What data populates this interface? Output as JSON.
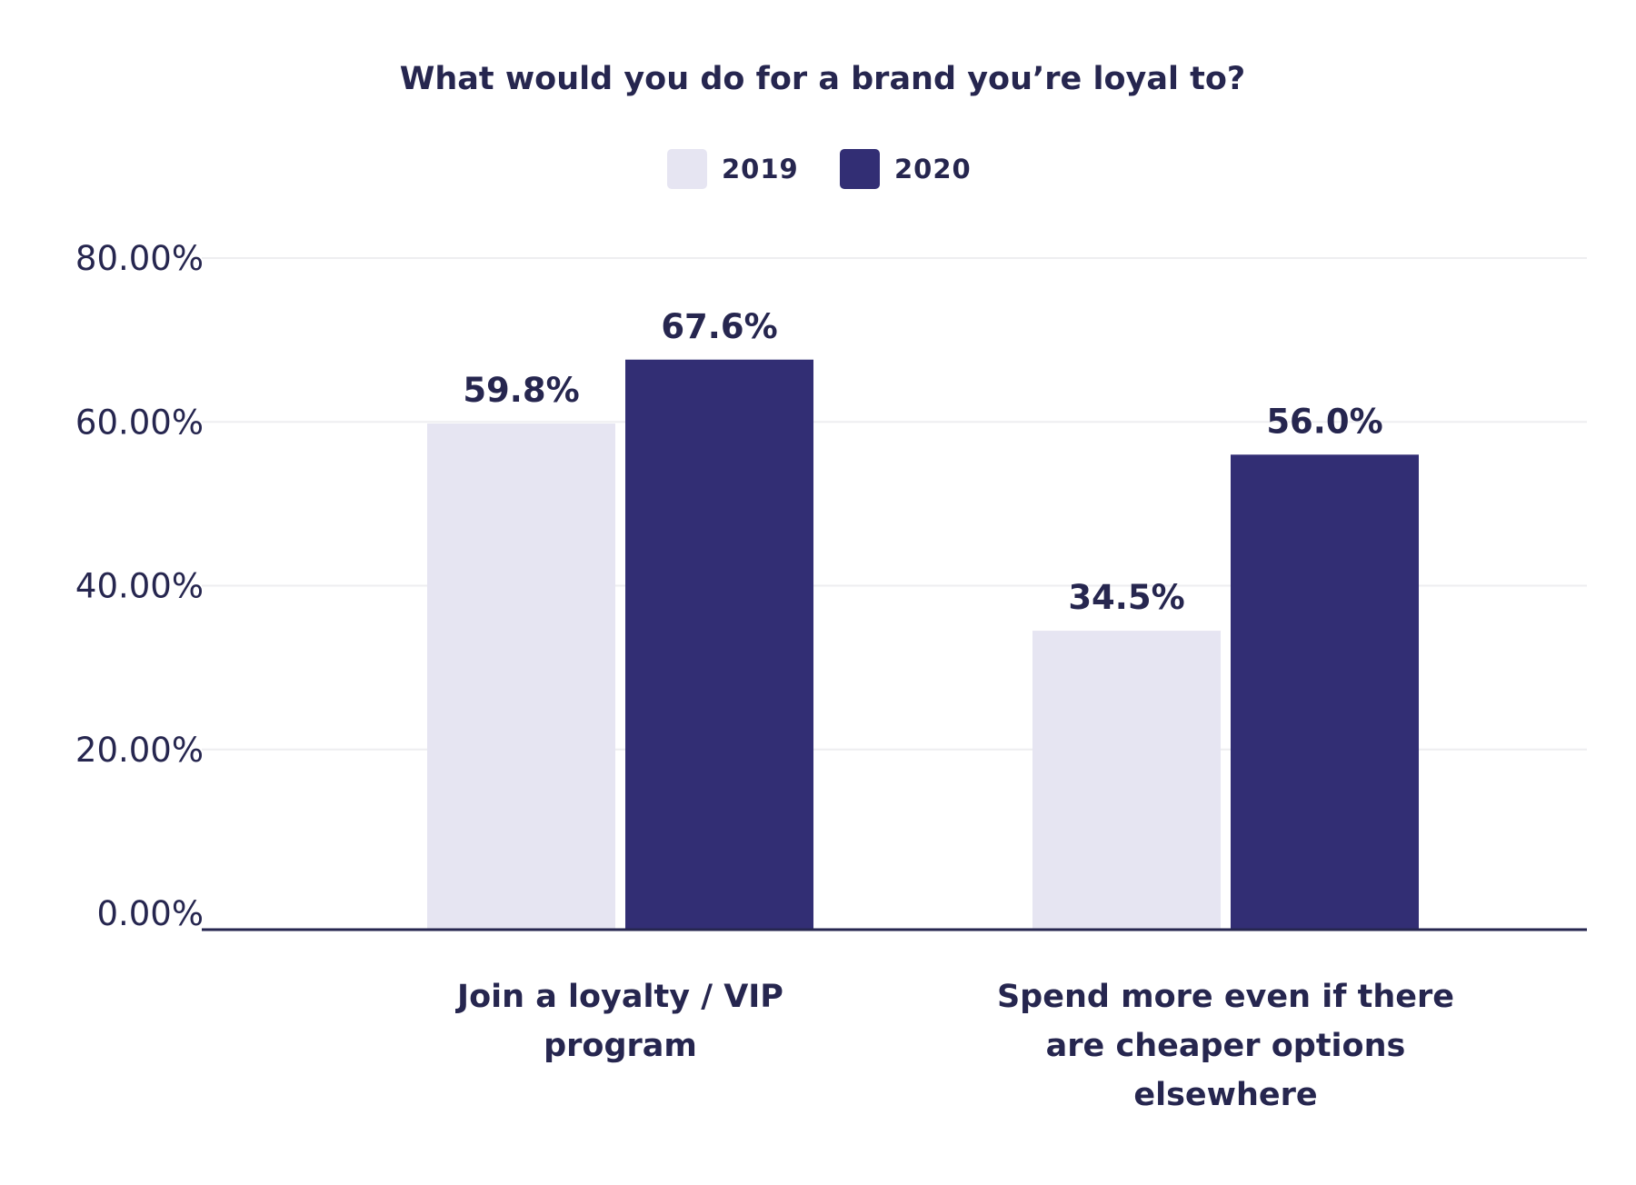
{
  "chart_data": {
    "type": "bar",
    "title": "What would you do for a brand you’re loyal to?",
    "categories": [
      [
        "Join a loyalty / VIP",
        "program"
      ],
      [
        "Spend more even if there",
        "are cheaper options",
        "elsewhere"
      ]
    ],
    "series": [
      {
        "name": "2019",
        "values": [
          59.8,
          34.5
        ],
        "labels": [
          "59.8%",
          "34.5%"
        ],
        "color": "#e6e5f2"
      },
      {
        "name": "2020",
        "values": [
          67.6,
          56.0
        ],
        "labels": [
          "67.6%",
          "56.0%"
        ],
        "color": "#322e74"
      }
    ],
    "yticks": [
      0,
      20,
      40,
      60,
      80
    ],
    "ytick_labels": [
      "0.00%",
      "20.00%",
      "40.00%",
      "60.00%",
      "80.00%"
    ],
    "ylim": [
      0,
      80
    ],
    "grid": true,
    "legend": "top-center",
    "text_color": "#26264f"
  }
}
